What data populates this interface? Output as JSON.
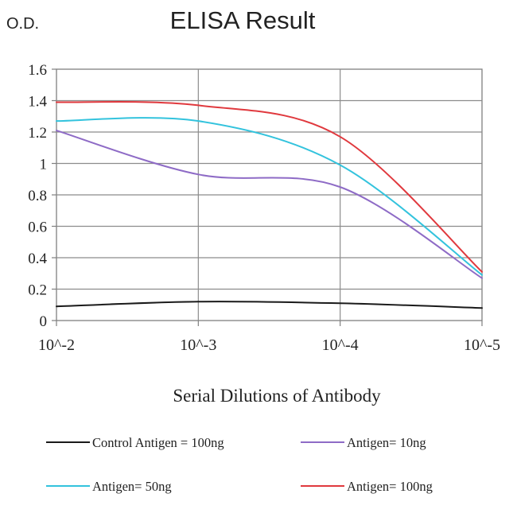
{
  "chart_data": {
    "type": "line",
    "title": "ELISA Result",
    "ylabel": "O.D.",
    "xlabel": "Serial Dilutions of Antibody",
    "categories": [
      "10^-2",
      "10^-3",
      "10^-4",
      "10^-5"
    ],
    "y_ticks": [
      "0",
      "0.2",
      "0.4",
      "0.6",
      "0.8",
      "1",
      "1.2",
      "1.4",
      "1.6"
    ],
    "ylim": [
      0,
      1.6
    ],
    "grid": true,
    "legend_position": "bottom",
    "series": [
      {
        "name": "Control Antigen = 100ng",
        "color": "#1a1a1a",
        "values": [
          0.09,
          0.12,
          0.11,
          0.08
        ]
      },
      {
        "name": "Antigen= 10ng",
        "color": "#8e6bc6",
        "values": [
          1.21,
          0.93,
          0.85,
          0.27
        ]
      },
      {
        "name": "Antigen= 50ng",
        "color": "#33c3dd",
        "values": [
          1.27,
          1.27,
          0.99,
          0.29
        ]
      },
      {
        "name": "Antigen= 100ng",
        "color": "#e0393e",
        "values": [
          1.39,
          1.37,
          1.17,
          0.31
        ]
      }
    ]
  }
}
